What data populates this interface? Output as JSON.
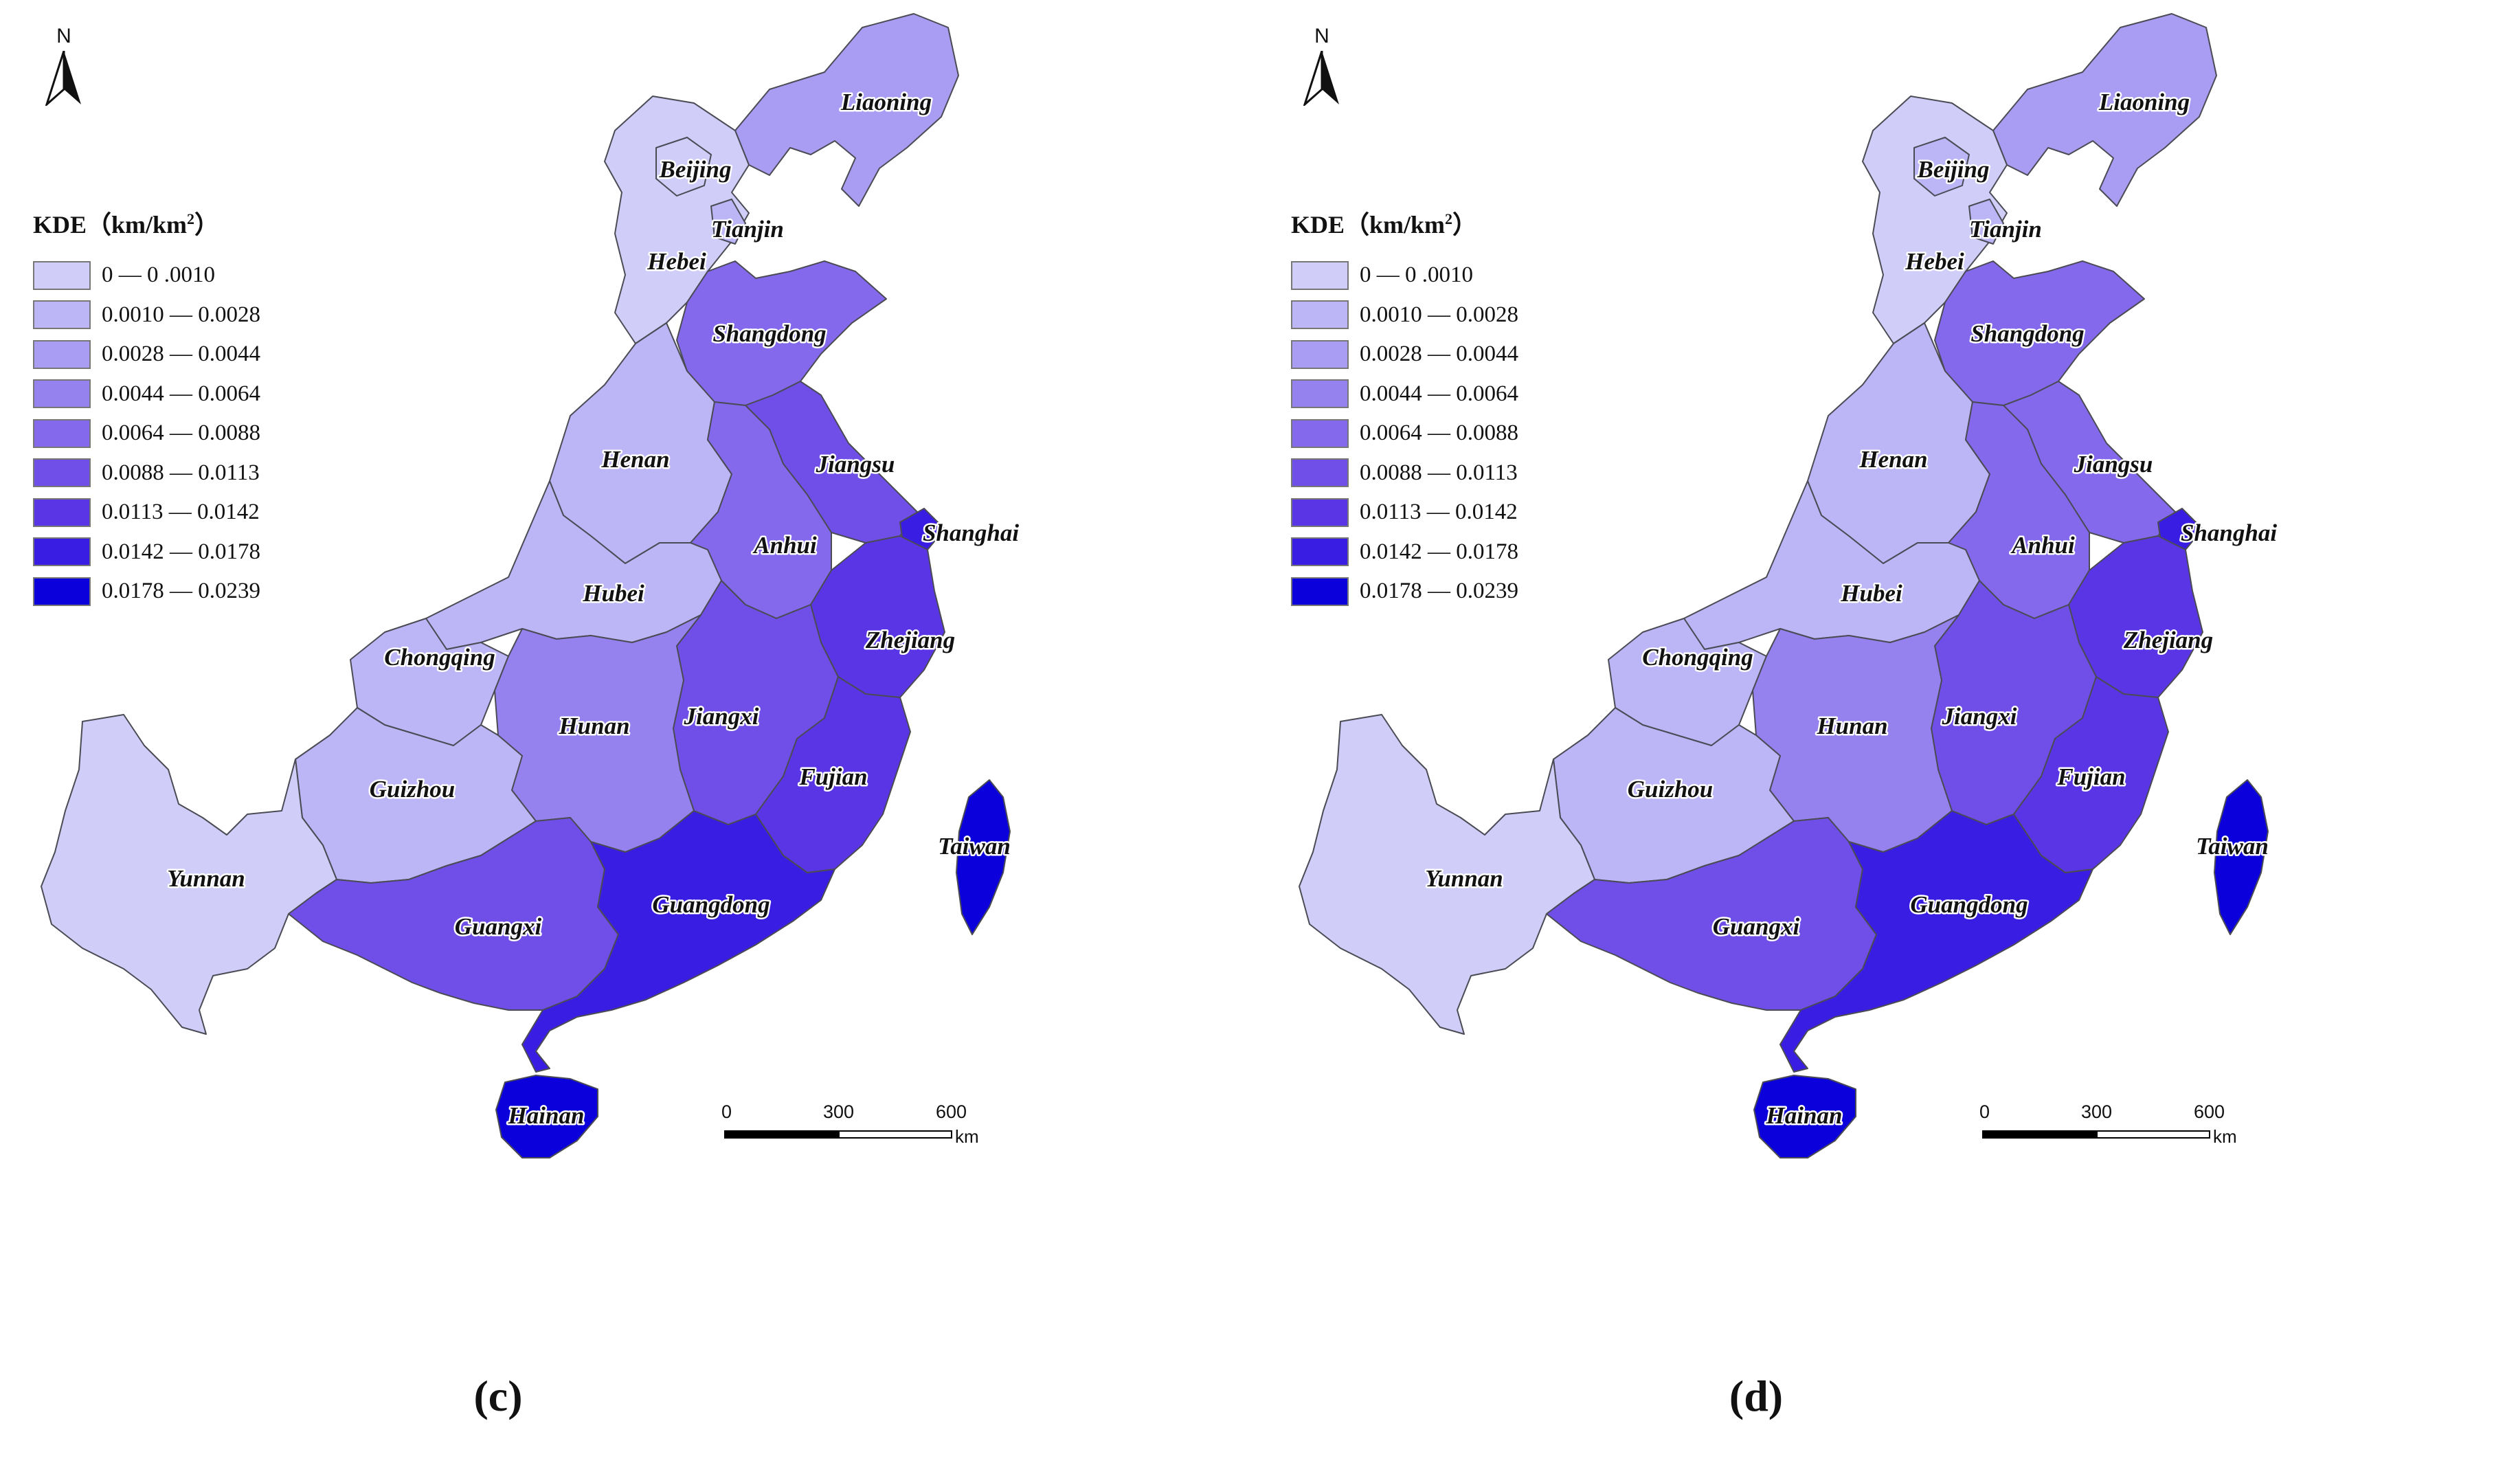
{
  "north_label": "N",
  "legend": {
    "title_prefix": "KDE（km/km",
    "title_exp": "2",
    "title_suffix": "）",
    "classes": [
      {
        "label": "0 — 0 .0010",
        "color": "#d0cef8"
      },
      {
        "label": "0.0010  — 0.0028",
        "color": "#bcb5f6"
      },
      {
        "label": "0.0028  — 0.0044",
        "color": "#a99cf3"
      },
      {
        "label": "0.0044  — 0.0064",
        "color": "#9682ef"
      },
      {
        "label": "0.0064  — 0.0088",
        "color": "#8569ec"
      },
      {
        "label": "0.0088  — 0.0113",
        "color": "#6f4fe8"
      },
      {
        "label": "0.0113  — 0.0142",
        "color": "#5a35e6"
      },
      {
        "label": "0.0142  — 0.0178",
        "color": "#3a1de2"
      },
      {
        "label": "0.0178  — 0.0239",
        "color": "#0b00dc"
      }
    ]
  },
  "scale": {
    "ticks": [
      "0",
      "300",
      "600"
    ],
    "unit": "km"
  },
  "panels": [
    {
      "id": "c",
      "label": "(c)",
      "provinces": {
        "yunnan": 0,
        "guizhou": 1,
        "chongqing": 1,
        "hubei": 1,
        "henan": 1,
        "hebei": 0,
        "beijing": 0,
        "tianjin": 1,
        "liaoning": 2,
        "shandong": 4,
        "hunan": 3,
        "guangxi": 5,
        "anhui": 4,
        "jiangsu": 5,
        "jiangxi": 5,
        "zhejiang": 6,
        "fujian": 6,
        "guangdong": 7,
        "shanghai": 7,
        "taiwan": 8,
        "hainan": 8
      }
    },
    {
      "id": "d",
      "label": "(d)",
      "provinces": {
        "yunnan": 0,
        "guizhou": 1,
        "chongqing": 1,
        "hubei": 1,
        "henan": 1,
        "hebei": 0,
        "beijing": 1,
        "tianjin": 1,
        "liaoning": 2,
        "shandong": 4,
        "hunan": 3,
        "guangxi": 5,
        "anhui": 4,
        "jiangsu": 4,
        "jiangxi": 5,
        "zhejiang": 6,
        "fujian": 6,
        "guangdong": 7,
        "shanghai": 7,
        "taiwan": 8,
        "hainan": 8
      }
    }
  ],
  "province_names": {
    "liaoning": "Liaoning",
    "beijing": "Beijing",
    "tianjin": "Tianjin",
    "hebei": "Hebei",
    "shandong": "Shangdong",
    "henan": "Henan",
    "jiangsu": "Jiangsu",
    "shanghai": "Shanghai",
    "anhui": "Anhui",
    "hubei": "Hubei",
    "zhejiang": "Zhejiang",
    "chongqing": "Chongqing",
    "hunan": "Hunan",
    "jiangxi": "Jiangxi",
    "fujian": "Fujian",
    "guizhou": "Guizhou",
    "taiwan": "Taiwan",
    "yunnan": "Yunnan",
    "guangxi": "Guangxi",
    "guangdong": "Guangdong",
    "hainan": "Hainan"
  }
}
